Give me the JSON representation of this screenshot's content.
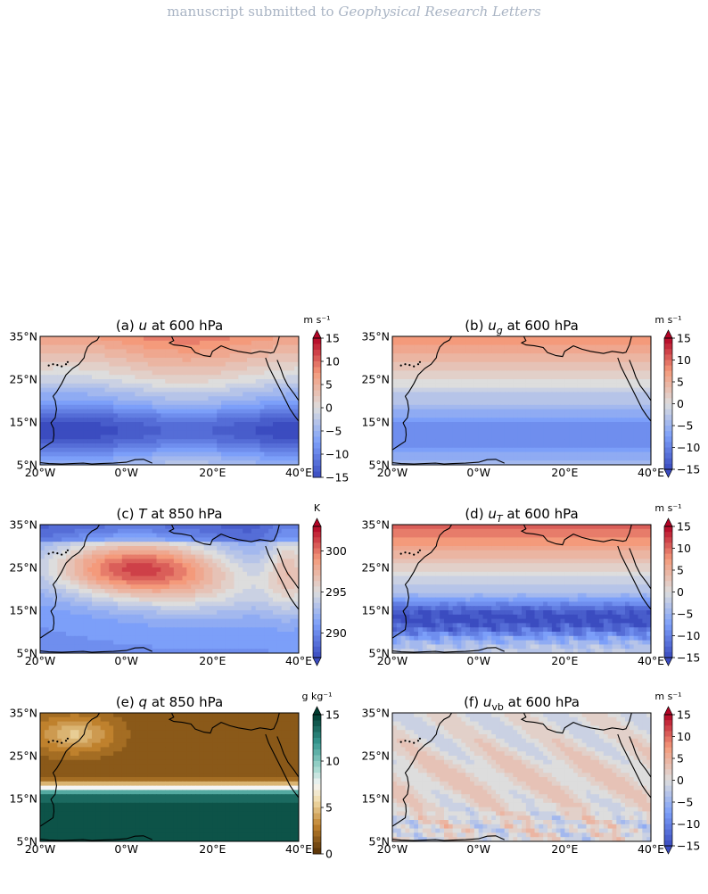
{
  "header": {
    "prefix": "manuscript submitted to ",
    "journal": "Geophysical Research Letters"
  },
  "panels": [
    {
      "id": "a",
      "label": "(a)",
      "var": "u",
      "sub": "",
      "level": "at 600 hPa",
      "unit": "m s⁻¹",
      "field": "u600",
      "cbar": {
        "min": -15,
        "max": 15,
        "ticks": [
          "15",
          "10",
          "5",
          "0",
          "−5",
          "−10",
          "−15"
        ],
        "ext": "max",
        "cmap": "coolwarm"
      }
    },
    {
      "id": "b",
      "label": "(b)",
      "var": "u",
      "sub": "g",
      "level": "at 600 hPa",
      "unit": "m s⁻¹",
      "field": "ug600",
      "cbar": {
        "min": -15,
        "max": 15,
        "ticks": [
          "15",
          "10",
          "5",
          "0",
          "−5",
          "−10",
          "−15"
        ],
        "ext": "both",
        "cmap": "coolwarm"
      }
    },
    {
      "id": "c",
      "label": "(c)",
      "var": "T",
      "sub": "",
      "level": "at 850 hPa",
      "unit": "K",
      "field": "t850",
      "cbar": {
        "min": 287,
        "max": 303,
        "ticks": [
          "300",
          "295",
          "290"
        ],
        "tickvals": [
          300,
          295,
          290
        ],
        "ext": "both",
        "cmap": "coolwarm"
      }
    },
    {
      "id": "d",
      "label": "(d)",
      "var": "u",
      "sub": "T",
      "level": "at 600 hPa",
      "unit": "m s⁻¹",
      "field": "ut600",
      "cbar": {
        "min": -15,
        "max": 15,
        "ticks": [
          "15",
          "10",
          "5",
          "0",
          "−5",
          "−10",
          "−15"
        ],
        "ext": "both",
        "cmap": "coolwarm"
      }
    },
    {
      "id": "e",
      "label": "(e)",
      "var": "q",
      "sub": "",
      "level": "at 850 hPa",
      "unit": "g kg⁻¹",
      "field": "q850",
      "cbar": {
        "min": 0,
        "max": 15,
        "ticks": [
          "15",
          "10",
          "5",
          "0"
        ],
        "ext": "max",
        "cmap": "brbg"
      }
    },
    {
      "id": "f",
      "label": "(f)",
      "var": "u",
      "sub": "vb",
      "level": "at 600 hPa",
      "unit": "m s⁻¹",
      "field": "uvb600",
      "cbar": {
        "min": -15,
        "max": 15,
        "ticks": [
          "15",
          "10",
          "5",
          "0",
          "−5",
          "−10",
          "−15"
        ],
        "ext": "both",
        "cmap": "coolwarm"
      }
    }
  ],
  "axes": {
    "lat_labels": [
      "35°N",
      "25°N",
      "15°N",
      "5°N"
    ],
    "lon_labels": [
      "20°W",
      "0°W",
      "20°E",
      "40°E"
    ],
    "lon_range": [
      -20,
      40
    ],
    "lat_range": [
      5,
      35
    ]
  }
}
